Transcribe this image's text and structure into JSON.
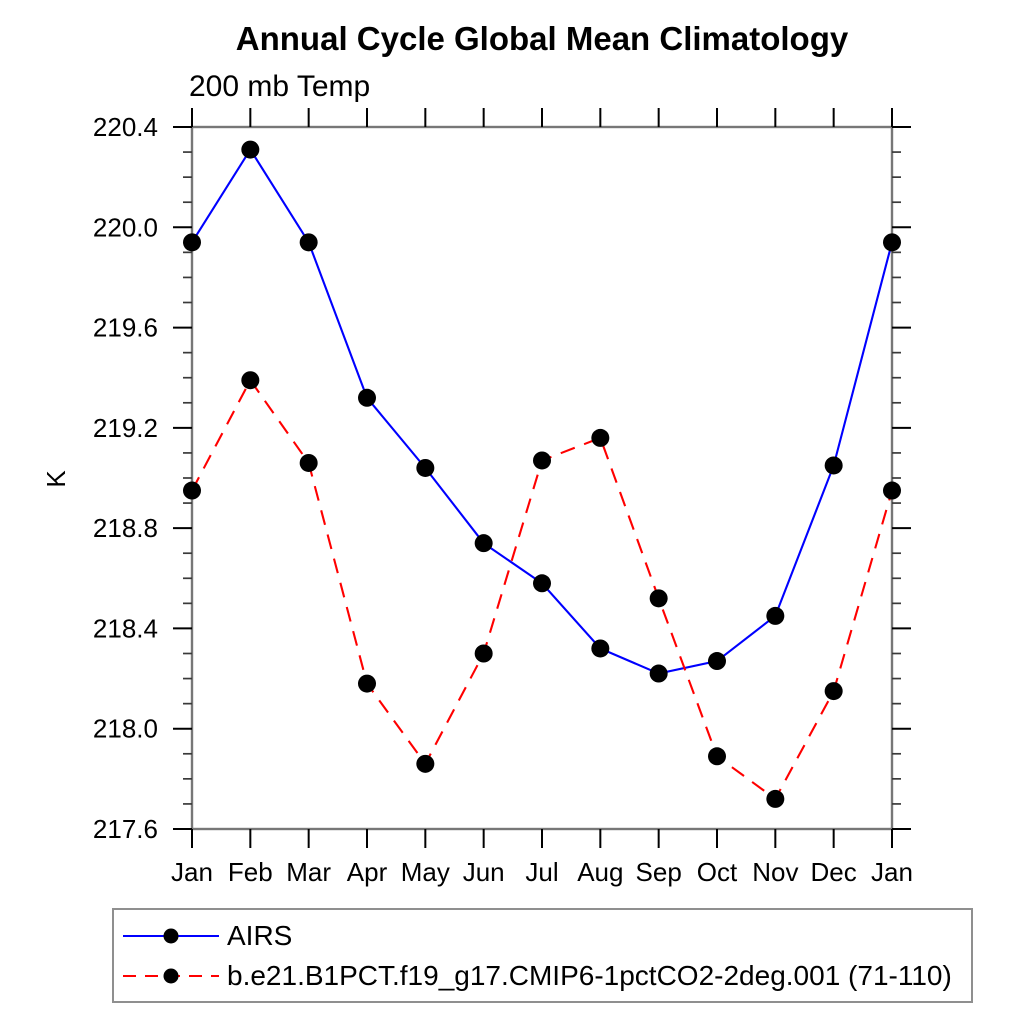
{
  "chart_data": {
    "type": "line",
    "title": "Annual Cycle Global Mean Climatology",
    "subtitle": "200 mb Temp",
    "ylabel": "K",
    "xlabel": "",
    "categories": [
      "Jan",
      "Feb",
      "Mar",
      "Apr",
      "May",
      "Jun",
      "Jul",
      "Aug",
      "Sep",
      "Oct",
      "Nov",
      "Dec",
      "Jan"
    ],
    "ylim": [
      217.6,
      220.4
    ],
    "ytick_major_step": 0.4,
    "ytick_minor_step": 0.1,
    "ytick_labels": [
      "217.6",
      "218.0",
      "218.4",
      "218.8",
      "219.2",
      "219.6",
      "220.0",
      "220.4"
    ],
    "grid": false,
    "legend_position": "bottom-left",
    "series": [
      {
        "name": "AIRS",
        "color": "#0000ff",
        "line_style": "solid",
        "marker": "filled-circle",
        "marker_color": "#000000",
        "values": [
          219.94,
          220.31,
          219.94,
          219.32,
          219.04,
          218.74,
          218.58,
          218.32,
          218.22,
          218.27,
          218.45,
          219.05,
          219.94
        ]
      },
      {
        "name": "b.e21.B1PCT.f19_g17.CMIP6-1pctCO2-2deg.001 (71-110)",
        "color": "#ff0000",
        "line_style": "dashed",
        "marker": "filled-circle",
        "marker_color": "#000000",
        "values": [
          218.95,
          219.39,
          219.06,
          218.18,
          217.86,
          218.3,
          219.07,
          219.16,
          218.52,
          217.89,
          217.72,
          218.15,
          218.95
        ]
      }
    ]
  }
}
